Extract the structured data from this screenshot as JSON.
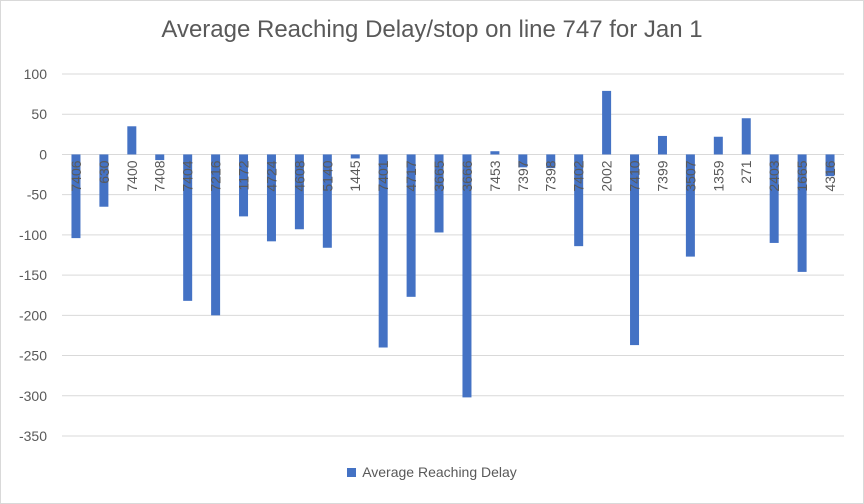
{
  "chart_data": {
    "type": "bar",
    "title": "Average Reaching Delay/stop on line 747 for Jan 1",
    "xlabel": "",
    "ylabel": "",
    "ylim": [
      -350,
      100
    ],
    "yticks": [
      100,
      50,
      0,
      -50,
      -100,
      -150,
      -200,
      -250,
      -300,
      -350
    ],
    "grid": true,
    "legend": "bottom",
    "bar_color": "#4472c4",
    "categories": [
      "7406",
      "630",
      "7400",
      "7408",
      "7404",
      "7216",
      "1172",
      "4724",
      "4608",
      "5140",
      "1445",
      "7401",
      "4717",
      "3665",
      "3666",
      "7453",
      "7397",
      "7398",
      "7402",
      "2002",
      "7410",
      "7399",
      "3507",
      "1359",
      "271",
      "2403",
      "1665",
      "4316"
    ],
    "series": [
      {
        "name": "Average Reaching Delay",
        "values": [
          -104,
          -65,
          35,
          -7,
          -182,
          -200,
          -77,
          -108,
          -93,
          -116,
          -5,
          -240,
          -177,
          -97,
          -302,
          4,
          -16,
          -17,
          -114,
          79,
          -237,
          23,
          -127,
          22,
          45,
          -110,
          -146,
          -27
        ]
      }
    ]
  }
}
